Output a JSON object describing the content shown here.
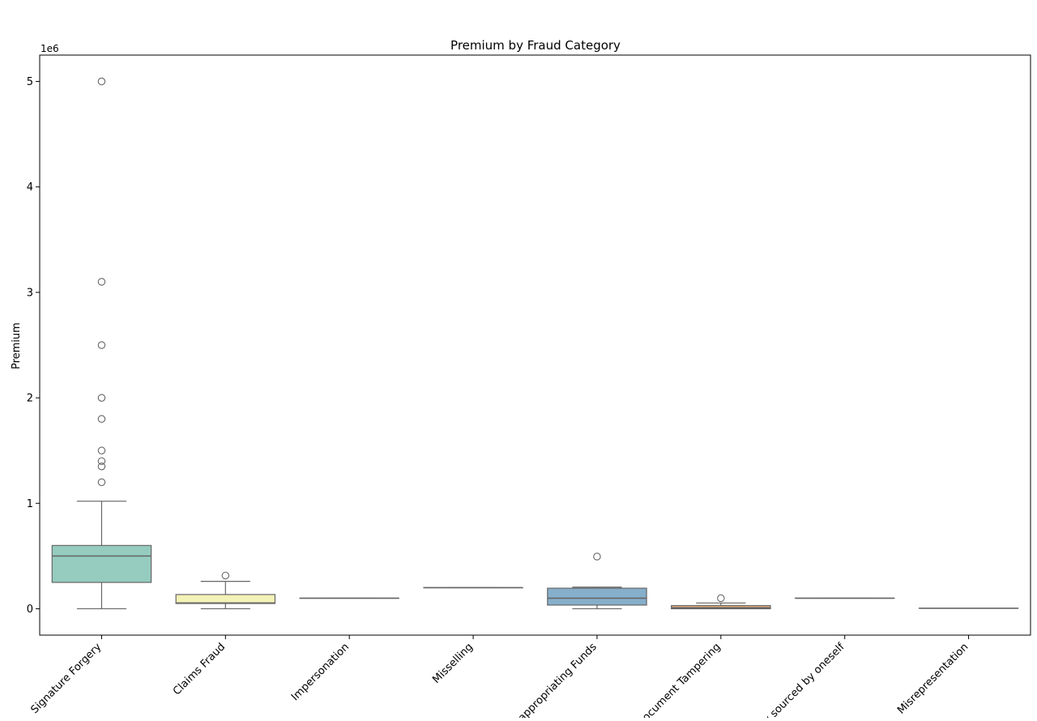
{
  "chart_data": {
    "type": "box",
    "title": "Premium by Fraud Category",
    "xlabel": "",
    "ylabel": "Premium",
    "y_scale_note": "1e6",
    "ylim": [
      -250000,
      5250000
    ],
    "yticks": [
      0,
      1000000,
      2000000,
      3000000,
      4000000,
      5000000
    ],
    "ytick_labels": [
      "0",
      "1",
      "2",
      "3",
      "4",
      "5"
    ],
    "categories": [
      "Signature Forgery",
      "Claims Fraud",
      "Impersonation",
      "Misselling",
      "Misappropriating Funds",
      "Document Tampering",
      "Policy sourced by oneself",
      "Misrepresentation"
    ],
    "boxes": [
      {
        "category": "Signature Forgery",
        "color": "#95CCBF",
        "whisker_low": 0,
        "q1": 250000,
        "median": 500000,
        "q3": 600000,
        "whisker_high": 1020000,
        "outliers": [
          1200000,
          1350000,
          1400000,
          1500000,
          1800000,
          2000000,
          2500000,
          3100000,
          5000000
        ]
      },
      {
        "category": "Claims Fraud",
        "color": "#F3F2B7",
        "whisker_low": 0,
        "q1": 50000,
        "median": 55000,
        "q3": 135000,
        "whisker_high": 260000,
        "outliers": [
          315000
        ]
      },
      {
        "category": "Impersonation",
        "color": "#BDBAD5",
        "whisker_low": 100000,
        "q1": 100000,
        "median": 100000,
        "q3": 100000,
        "whisker_high": 100000,
        "outliers": []
      },
      {
        "category": "Misselling",
        "color": "#E88A7F",
        "whisker_low": 200000,
        "q1": 200000,
        "median": 200000,
        "q3": 200000,
        "whisker_high": 200000,
        "outliers": []
      },
      {
        "category": "Misappropriating Funds",
        "color": "#86AFCB",
        "whisker_low": 0,
        "q1": 35000,
        "median": 100000,
        "q3": 195000,
        "whisker_high": 205000,
        "outliers": [
          495000
        ]
      },
      {
        "category": "Document Tampering",
        "color": "#F2B57F",
        "whisker_low": 0,
        "q1": 0,
        "median": 10000,
        "q3": 30000,
        "whisker_high": 55000,
        "outliers": [
          100000
        ]
      },
      {
        "category": "Policy sourced by oneself",
        "color": "#BDDF8E",
        "whisker_low": 100000,
        "q1": 100000,
        "median": 100000,
        "q3": 100000,
        "whisker_high": 100000,
        "outliers": []
      },
      {
        "category": "Misrepresentation",
        "color": "#F5D4E5",
        "whisker_low": 5000,
        "q1": 5000,
        "median": 5000,
        "q3": 5000,
        "whisker_high": 5000,
        "outliers": []
      }
    ],
    "grid": false,
    "legend": "none"
  }
}
